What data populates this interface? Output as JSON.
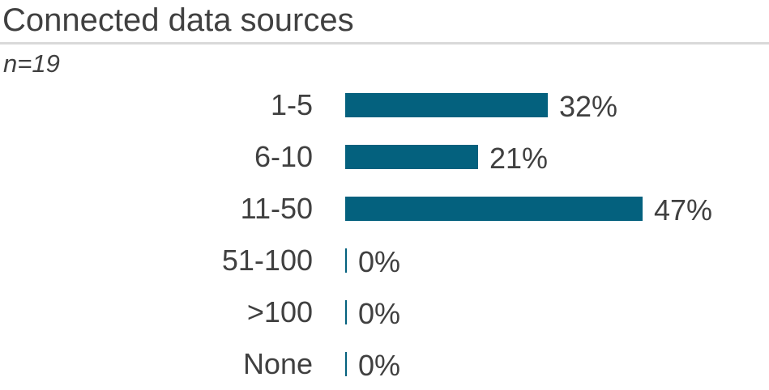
{
  "header": {
    "title": "Connected data sources",
    "sample_size": "n=19"
  },
  "colors": {
    "bar": "#04617E",
    "text": "#404040",
    "divider": "#D9D9D9",
    "background": "#FFFFFF"
  },
  "chart_data": {
    "type": "bar",
    "orientation": "horizontal",
    "title": "Connected data sources",
    "subtitle": "n=19",
    "categories": [
      "1-5",
      "6-10",
      "11-50",
      "51-100",
      ">100",
      "None"
    ],
    "values": [
      32,
      21,
      47,
      0,
      0,
      0
    ],
    "value_labels": [
      "32%",
      "21%",
      "47%",
      "0%",
      "0%",
      "0%"
    ],
    "xlabel": "",
    "ylabel": "",
    "xlim": [
      0,
      50
    ],
    "grid": false,
    "legend": false,
    "data_labels": "outside-end"
  }
}
